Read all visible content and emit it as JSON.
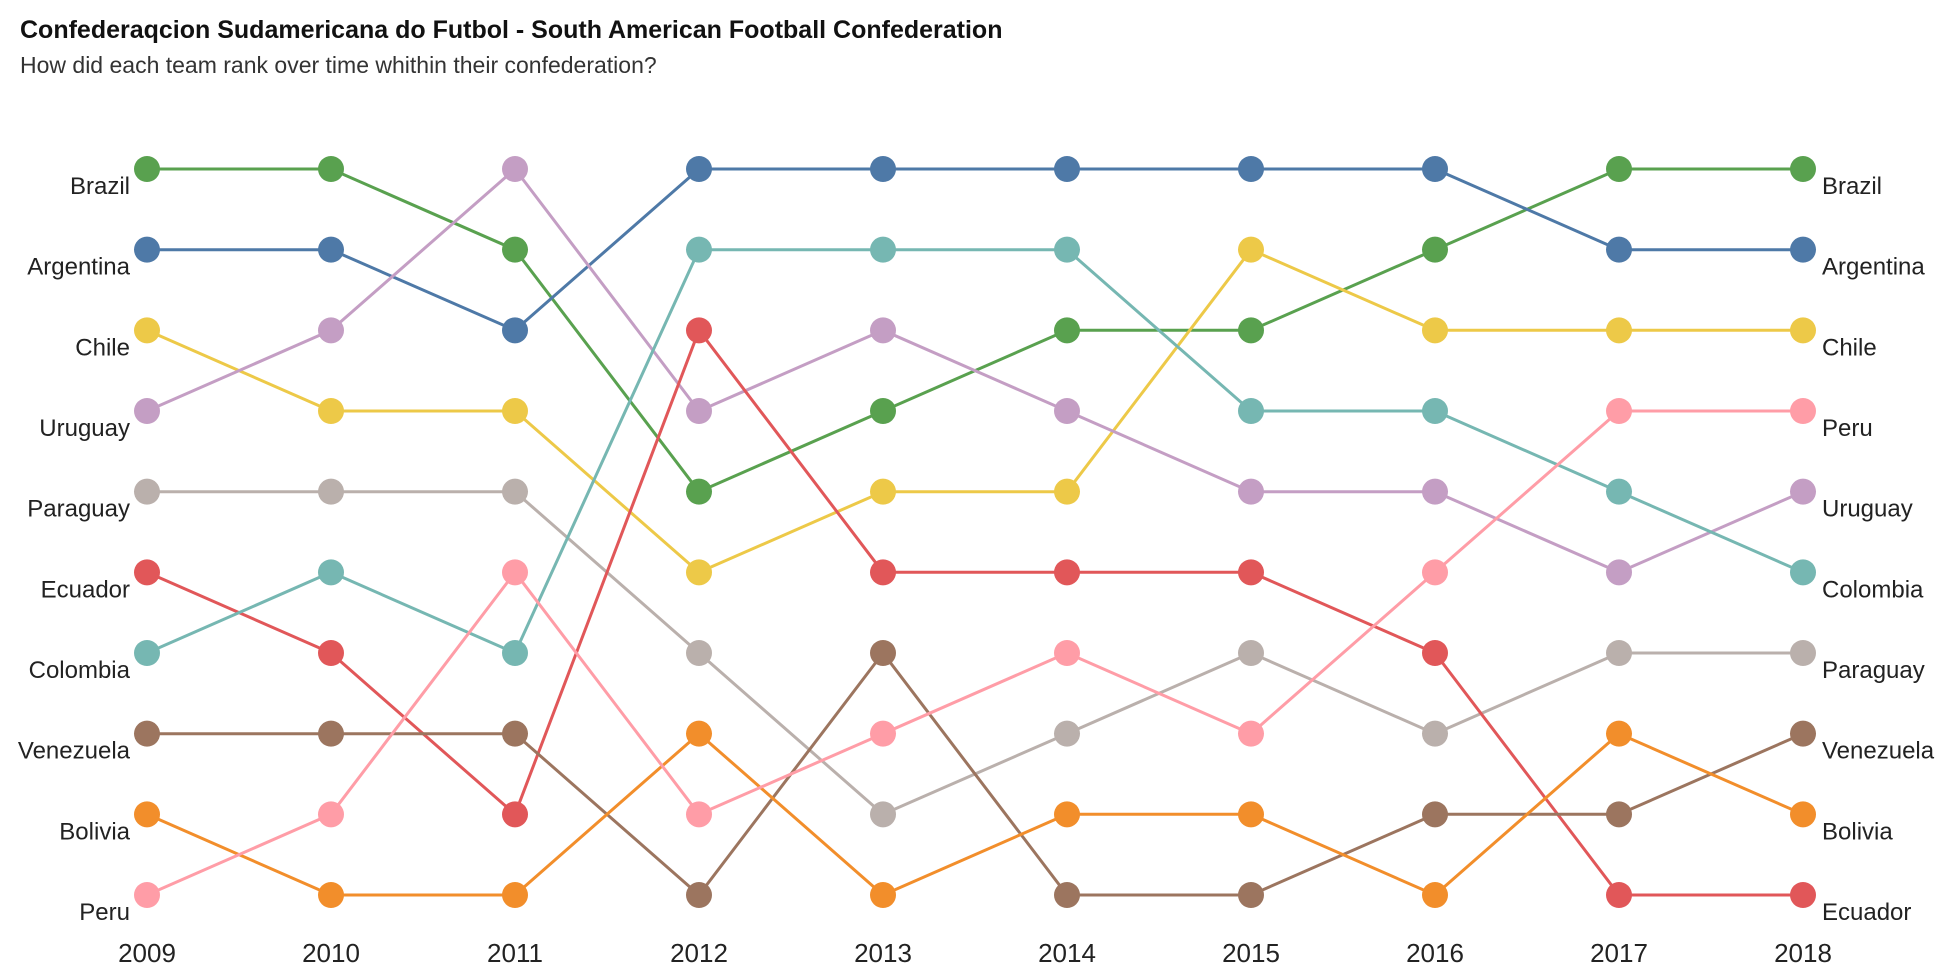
{
  "title": "Confederaqcion Sudamericana do Futbol - South American Football Confederation",
  "subtitle": "How did each team rank over time whithin their confederation?",
  "chart_data": {
    "type": "line",
    "chart_style": "bump chart (rank over time)",
    "x": [
      "2009",
      "2010",
      "2011",
      "2012",
      "2013",
      "2014",
      "2015",
      "2016",
      "2017",
      "2018"
    ],
    "y_scale": "rank, 1 at top",
    "ylim": [
      1,
      10
    ],
    "grid": false,
    "legend": "team names labeled at both ends of lines",
    "series": [
      {
        "name": "Brazil",
        "color": "#59a14f",
        "ranks": [
          1,
          1,
          2,
          5,
          4,
          3,
          3,
          2,
          1,
          1
        ]
      },
      {
        "name": "Argentina",
        "color": "#4e79a7",
        "ranks": [
          2,
          2,
          3,
          1,
          1,
          1,
          1,
          1,
          2,
          2
        ]
      },
      {
        "name": "Chile",
        "color": "#edc948",
        "ranks": [
          3,
          4,
          4,
          6,
          5,
          5,
          2,
          3,
          3,
          3
        ]
      },
      {
        "name": "Uruguay",
        "color": "#c49ec4",
        "ranks": [
          4,
          3,
          1,
          4,
          3,
          4,
          5,
          5,
          6,
          5
        ]
      },
      {
        "name": "Paraguay",
        "color": "#bab0ac",
        "ranks": [
          5,
          5,
          5,
          7,
          9,
          8,
          7,
          8,
          7,
          7
        ]
      },
      {
        "name": "Ecuador",
        "color": "#e15759",
        "ranks": [
          6,
          7,
          9,
          3,
          6,
          6,
          6,
          7,
          10,
          10
        ]
      },
      {
        "name": "Colombia",
        "color": "#76b7b2",
        "ranks": [
          7,
          6,
          7,
          2,
          2,
          2,
          4,
          4,
          5,
          6
        ]
      },
      {
        "name": "Venezuela",
        "color": "#9c755f",
        "ranks": [
          8,
          8,
          8,
          10,
          7,
          10,
          10,
          9,
          9,
          8
        ]
      },
      {
        "name": "Bolivia",
        "color": "#f28e2b",
        "ranks": [
          9,
          10,
          10,
          8,
          10,
          9,
          9,
          10,
          8,
          9
        ]
      },
      {
        "name": "Peru",
        "color": "#ff9da7",
        "ranks": [
          10,
          9,
          6,
          9,
          8,
          7,
          8,
          6,
          4,
          4
        ]
      }
    ],
    "left_labels": [
      "Brazil",
      "Argentina",
      "Chile",
      "Uruguay",
      "Paraguay",
      "Ecuador",
      "Colombia",
      "Venezuela",
      "Bolivia",
      "Peru"
    ],
    "right_labels": [
      "Brazil",
      "Argentina",
      "Chile",
      "Peru",
      "Uruguay",
      "Colombia",
      "Paraguay",
      "Venezuela",
      "Bolivia",
      "Ecuador"
    ]
  }
}
